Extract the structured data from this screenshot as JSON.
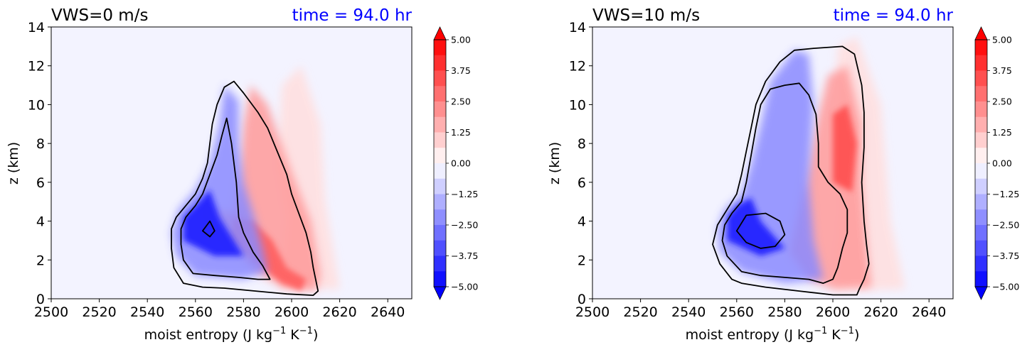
{
  "chart_data": [
    {
      "type": "heatmap",
      "title_left": "VWS=0 m/s",
      "title_right": "time = 94.0 hr",
      "title_right_color": "#0000ff",
      "xlabel": "moist entropy (J kg",
      "xlabel_sup1": "−1",
      "xlabel_mid": " K",
      "xlabel_sup2": "−1",
      "xlabel_end": ")",
      "ylabel": "z (km)",
      "xlim": [
        2500,
        2650
      ],
      "ylim": [
        0,
        14
      ],
      "xticks": [
        "2500",
        "2520",
        "2540",
        "2560",
        "2580",
        "2600",
        "2620",
        "2640"
      ],
      "yticks": [
        "0",
        "2",
        "4",
        "6",
        "8",
        "10",
        "12",
        "14"
      ],
      "colorbar": {
        "range": [
          -5.0,
          5.0
        ],
        "ticks": [
          "5.00",
          "3.75",
          "2.50",
          "1.25",
          "0.00",
          "−1.25",
          "−2.50",
          "−3.75",
          "−5.00"
        ],
        "extend": "both",
        "cmap": "bwr"
      },
      "negative_region": [
        [
          2560,
          1.2
        ],
        [
          2552,
          2.2
        ],
        [
          2550,
          3.4
        ],
        [
          2553,
          4.6
        ],
        [
          2560,
          5.6
        ],
        [
          2566,
          7.0
        ],
        [
          2570,
          9.0
        ],
        [
          2572,
          11.0
        ],
        [
          2578,
          10.2
        ],
        [
          2578,
          8.0
        ],
        [
          2580,
          6.0
        ],
        [
          2584,
          4.4
        ],
        [
          2588,
          2.6
        ],
        [
          2590,
          1.4
        ],
        [
          2580,
          1.0
        ]
      ],
      "strong_negative_region": [
        [
          2555,
          3.0
        ],
        [
          2555,
          4.2
        ],
        [
          2560,
          4.8
        ],
        [
          2566,
          5.6
        ],
        [
          2570,
          4.2
        ],
        [
          2580,
          2.2
        ],
        [
          2568,
          2.2
        ]
      ],
      "positive_region": [
        [
          2566,
          4.6
        ],
        [
          2576,
          4.4
        ],
        [
          2578,
          6.0
        ],
        [
          2580,
          9.0
        ],
        [
          2583,
          11.0
        ],
        [
          2590,
          10.0
        ],
        [
          2600,
          6.5
        ],
        [
          2608,
          4.0
        ],
        [
          2612,
          1.2
        ],
        [
          2610,
          0.4
        ],
        [
          2596,
          0.6
        ],
        [
          2585,
          1.4
        ],
        [
          2578,
          2.4
        ]
      ],
      "strong_positive_region": [
        [
          2574,
          3.0
        ],
        [
          2576,
          4.2
        ],
        [
          2584,
          4.0
        ],
        [
          2592,
          3.0
        ],
        [
          2598,
          1.6
        ],
        [
          2606,
          1.0
        ],
        [
          2604,
          0.4
        ],
        [
          2596,
          0.8
        ],
        [
          2586,
          1.8
        ]
      ],
      "weak_positive_region": [
        [
          2595,
          0.5
        ],
        [
          2598,
          4.0
        ],
        [
          2594,
          7.0
        ],
        [
          2596,
          11.0
        ],
        [
          2604,
          12.0
        ],
        [
          2612,
          9.0
        ],
        [
          2614,
          5.0
        ],
        [
          2620,
          0.5
        ]
      ],
      "contours": [
        [
          [
            2555,
            0.8
          ],
          [
            2551,
            1.6
          ],
          [
            2550,
            2.6
          ],
          [
            2550,
            3.6
          ],
          [
            2552,
            4.2
          ],
          [
            2556,
            4.8
          ],
          [
            2560,
            5.4
          ],
          [
            2563,
            6.2
          ],
          [
            2565,
            7.0
          ],
          [
            2566,
            8.0
          ],
          [
            2567,
            9.0
          ],
          [
            2569,
            10.0
          ],
          [
            2572,
            10.9
          ],
          [
            2576,
            11.2
          ],
          [
            2580,
            10.6
          ],
          [
            2586,
            9.6
          ],
          [
            2590,
            8.8
          ],
          [
            2594,
            7.6
          ],
          [
            2598,
            6.4
          ],
          [
            2600,
            5.4
          ],
          [
            2603,
            4.4
          ],
          [
            2606,
            3.4
          ],
          [
            2608,
            2.4
          ],
          [
            2609,
            1.6
          ],
          [
            2610,
            1.0
          ],
          [
            2611,
            0.4
          ],
          [
            2609,
            0.18
          ],
          [
            2598,
            0.25
          ],
          [
            2585,
            0.4
          ],
          [
            2572,
            0.55
          ],
          [
            2563,
            0.6
          ],
          [
            2555,
            0.8
          ]
        ],
        [
          [
            2559,
            1.3
          ],
          [
            2555,
            2.0
          ],
          [
            2554,
            2.8
          ],
          [
            2554,
            3.6
          ],
          [
            2556,
            4.2
          ],
          [
            2560,
            4.8
          ],
          [
            2563,
            5.4
          ],
          [
            2566,
            6.4
          ],
          [
            2569,
            7.4
          ],
          [
            2571,
            8.4
          ],
          [
            2573,
            9.3
          ],
          [
            2575,
            8.0
          ],
          [
            2577,
            6.0
          ],
          [
            2578,
            4.2
          ],
          [
            2580,
            3.4
          ],
          [
            2584,
            2.4
          ],
          [
            2588,
            1.7
          ],
          [
            2591,
            1.0
          ],
          [
            2586,
            1.0
          ],
          [
            2578,
            1.1
          ],
          [
            2568,
            1.2
          ],
          [
            2559,
            1.3
          ]
        ],
        [
          [
            2563,
            3.5
          ],
          [
            2566,
            4.0
          ],
          [
            2568,
            3.5
          ],
          [
            2566,
            3.2
          ],
          [
            2563,
            3.5
          ]
        ]
      ]
    },
    {
      "type": "heatmap",
      "title_left": "VWS=10 m/s",
      "title_right": "time = 94.0 hr",
      "title_right_color": "#0000ff",
      "xlabel": "moist entropy (J kg",
      "xlabel_sup1": "−1",
      "xlabel_mid": " K",
      "xlabel_sup2": "−1",
      "xlabel_end": ")",
      "ylabel": "z (km)",
      "xlim": [
        2500,
        2650
      ],
      "ylim": [
        0,
        14
      ],
      "xticks": [
        "2500",
        "2520",
        "2540",
        "2560",
        "2580",
        "2600",
        "2620",
        "2640"
      ],
      "yticks": [
        "0",
        "2",
        "4",
        "6",
        "8",
        "10",
        "12",
        "14"
      ],
      "colorbar": {
        "range": [
          -5.0,
          5.0
        ],
        "ticks": [
          "5.00",
          "3.75",
          "2.50",
          "1.25",
          "0.00",
          "−1.25",
          "−2.50",
          "−3.75",
          "−5.00"
        ],
        "extend": "both",
        "cmap": "bwr"
      },
      "negative_region": [
        [
          2562,
          1.4
        ],
        [
          2553,
          2.4
        ],
        [
          2552,
          3.6
        ],
        [
          2555,
          4.6
        ],
        [
          2562,
          5.4
        ],
        [
          2566,
          7.0
        ],
        [
          2570,
          9.0
        ],
        [
          2574,
          11.2
        ],
        [
          2584,
          12.8
        ],
        [
          2590,
          12.6
        ],
        [
          2592,
          10.0
        ],
        [
          2590,
          6.0
        ],
        [
          2592,
          3.0
        ],
        [
          2596,
          1.0
        ],
        [
          2580,
          0.8
        ]
      ],
      "strong_negative_region": [
        [
          2556,
          3.0
        ],
        [
          2556,
          4.2
        ],
        [
          2560,
          4.8
        ],
        [
          2566,
          5.2
        ],
        [
          2570,
          4.0
        ],
        [
          2580,
          2.6
        ],
        [
          2570,
          2.2
        ]
      ],
      "positive_region": [
        [
          2582,
          2.4
        ],
        [
          2586,
          4.6
        ],
        [
          2590,
          7.0
        ],
        [
          2594,
          9.5
        ],
        [
          2598,
          11.5
        ],
        [
          2606,
          12.0
        ],
        [
          2612,
          9.0
        ],
        [
          2612,
          6.0
        ],
        [
          2614,
          3.0
        ],
        [
          2616,
          0.6
        ],
        [
          2600,
          0.5
        ],
        [
          2590,
          1.0
        ]
      ],
      "strong_positive_region": [
        [
          2600,
          6.0
        ],
        [
          2600,
          9.5
        ],
        [
          2606,
          10.0
        ],
        [
          2610,
          8.0
        ],
        [
          2608,
          5.5
        ]
      ],
      "weak_positive_region": [
        [
          2600,
          0.4
        ],
        [
          2604,
          5.0
        ],
        [
          2600,
          9.0
        ],
        [
          2602,
          13.0
        ],
        [
          2610,
          13.5
        ],
        [
          2620,
          10.0
        ],
        [
          2624,
          4.0
        ],
        [
          2630,
          0.5
        ]
      ],
      "contours": [
        [
          [
            2558,
            1.0
          ],
          [
            2553,
            1.8
          ],
          [
            2550,
            2.8
          ],
          [
            2552,
            3.8
          ],
          [
            2556,
            4.6
          ],
          [
            2560,
            5.4
          ],
          [
            2562,
            6.4
          ],
          [
            2564,
            7.6
          ],
          [
            2566,
            8.8
          ],
          [
            2568,
            10.0
          ],
          [
            2572,
            11.2
          ],
          [
            2578,
            12.2
          ],
          [
            2584,
            12.8
          ],
          [
            2592,
            12.9
          ],
          [
            2604,
            13.0
          ],
          [
            2609,
            12.6
          ],
          [
            2612,
            11.0
          ],
          [
            2613,
            9.6
          ],
          [
            2613,
            7.8
          ],
          [
            2612,
            6.0
          ],
          [
            2613,
            4.0
          ],
          [
            2614,
            2.8
          ],
          [
            2615,
            1.8
          ],
          [
            2613,
            1.0
          ],
          [
            2611,
            0.5
          ],
          [
            2610,
            0.2
          ],
          [
            2600,
            0.2
          ],
          [
            2586,
            0.4
          ],
          [
            2572,
            0.6
          ],
          [
            2562,
            0.8
          ],
          [
            2558,
            1.0
          ]
        ],
        [
          [
            2562,
            1.4
          ],
          [
            2556,
            2.2
          ],
          [
            2554,
            3.0
          ],
          [
            2555,
            3.8
          ],
          [
            2558,
            4.4
          ],
          [
            2562,
            5.0
          ],
          [
            2564,
            6.0
          ],
          [
            2566,
            7.4
          ],
          [
            2568,
            8.8
          ],
          [
            2570,
            10.0
          ],
          [
            2574,
            10.8
          ],
          [
            2580,
            11.0
          ],
          [
            2586,
            11.1
          ],
          [
            2590,
            10.5
          ],
          [
            2593,
            9.5
          ],
          [
            2594,
            8.0
          ],
          [
            2594,
            6.8
          ],
          [
            2598,
            6.0
          ],
          [
            2603,
            5.4
          ],
          [
            2606,
            4.6
          ],
          [
            2606,
            3.4
          ],
          [
            2604,
            2.6
          ],
          [
            2602,
            1.6
          ],
          [
            2600,
            1.0
          ],
          [
            2596,
            0.8
          ],
          [
            2590,
            1.0
          ],
          [
            2580,
            1.1
          ],
          [
            2570,
            1.2
          ],
          [
            2562,
            1.4
          ]
        ],
        [
          [
            2560,
            3.5
          ],
          [
            2564,
            4.3
          ],
          [
            2572,
            4.4
          ],
          [
            2578,
            4.0
          ],
          [
            2580,
            3.3
          ],
          [
            2576,
            2.7
          ],
          [
            2570,
            2.6
          ],
          [
            2564,
            2.9
          ],
          [
            2560,
            3.5
          ]
        ]
      ]
    }
  ]
}
